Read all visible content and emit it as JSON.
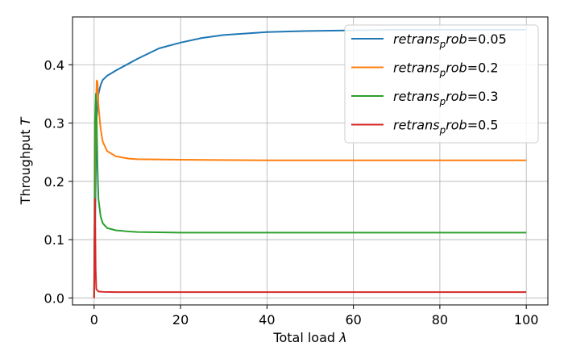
{
  "chart_data": {
    "type": "line",
    "xlabel": "Total load λ",
    "ylabel": "Throughput T",
    "xlim": [
      -5,
      105
    ],
    "ylim": [
      -0.012,
      0.482
    ],
    "xticks": [
      0,
      20,
      40,
      60,
      80,
      100
    ],
    "yticks": [
      0.0,
      0.1,
      0.2,
      0.3,
      0.4
    ],
    "xtick_labels": [
      "0",
      "20",
      "40",
      "60",
      "80",
      "100"
    ],
    "ytick_labels": [
      "0.0",
      "0.1",
      "0.2",
      "0.3",
      "0.4"
    ],
    "grid": true,
    "legend_position": "top-right",
    "series": [
      {
        "name": "retrans_prob=0.05",
        "color": "#1f77b4",
        "x": [
          0,
          0.2,
          0.5,
          1,
          1.5,
          2,
          3,
          5,
          8,
          10,
          15,
          20,
          25,
          30,
          40,
          50,
          60,
          70,
          80,
          90,
          100
        ],
        "y": [
          0.0,
          0.1,
          0.3,
          0.35,
          0.365,
          0.374,
          0.381,
          0.39,
          0.402,
          0.41,
          0.428,
          0.438,
          0.446,
          0.451,
          0.456,
          0.458,
          0.459,
          0.46,
          0.46,
          0.46,
          0.46
        ]
      },
      {
        "name": "retrans_prob=0.2",
        "color": "#ff7f0e",
        "x": [
          0,
          0.3,
          0.6,
          0.8,
          1,
          1.5,
          2,
          3,
          5,
          8,
          10,
          20,
          40,
          60,
          80,
          100
        ],
        "y": [
          0.0,
          0.3,
          0.373,
          0.37,
          0.33,
          0.29,
          0.268,
          0.252,
          0.243,
          0.239,
          0.238,
          0.237,
          0.236,
          0.236,
          0.236,
          0.236
        ]
      },
      {
        "name": "retrans_prob=0.3",
        "color": "#2ca02c",
        "x": [
          0,
          0.2,
          0.4,
          0.6,
          0.8,
          1,
          1.5,
          2,
          3,
          5,
          8,
          10,
          20,
          40,
          60,
          80,
          100
        ],
        "y": [
          0.0,
          0.3,
          0.35,
          0.3,
          0.22,
          0.17,
          0.14,
          0.128,
          0.12,
          0.116,
          0.114,
          0.113,
          0.112,
          0.112,
          0.112,
          0.112,
          0.112
        ]
      },
      {
        "name": "retrans_prob=0.5",
        "color": "#d62728",
        "x": [
          0,
          0.1,
          0.2,
          0.35,
          0.5,
          1,
          2,
          5,
          20,
          40,
          60,
          80,
          100
        ],
        "y": [
          0.0,
          0.1,
          0.17,
          0.05,
          0.015,
          0.011,
          0.0105,
          0.01,
          0.01,
          0.01,
          0.01,
          0.01,
          0.01
        ]
      }
    ]
  }
}
